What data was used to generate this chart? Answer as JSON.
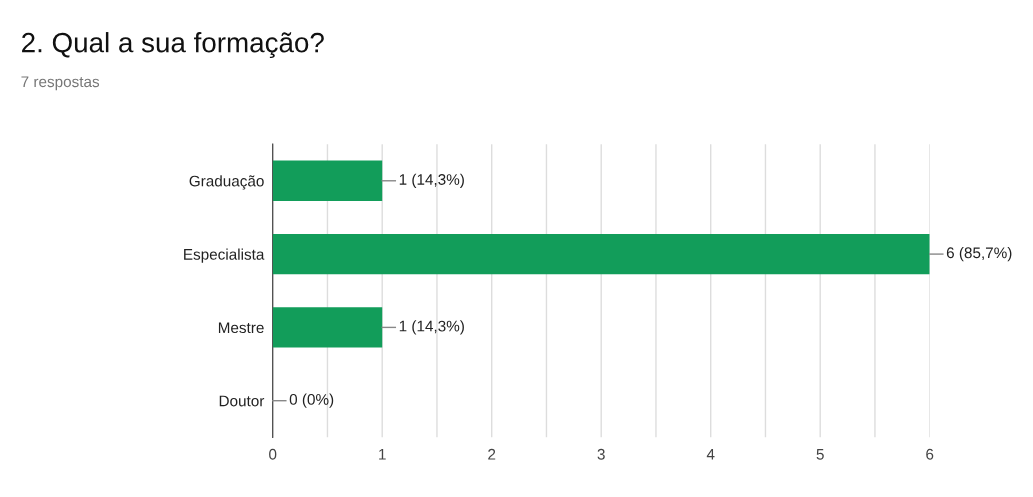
{
  "chart_data": {
    "type": "bar",
    "orientation": "horizontal",
    "title": "2. Qual a sua formação?",
    "subtitle": "7 respostas",
    "categories": [
      "Graduação",
      "Especialista",
      "Mestre",
      "Doutor"
    ],
    "values": [
      1,
      6,
      1,
      0
    ],
    "color": "#129d5a",
    "value_labels": [
      "1 (14,3%)",
      "6 (85,7%)",
      "1 (14,3%)",
      "0 (0%)"
    ],
    "xlim": [
      0,
      6
    ],
    "xticks": [
      0,
      {
        "value": 0.5,
        "label": null
      },
      1,
      {
        "value": 1.5,
        "label": null
      },
      2,
      {
        "value": 2.5,
        "label": null
      },
      3,
      {
        "value": 3.5,
        "label": null
      },
      4,
      {
        "value": 4.5,
        "label": null
      },
      5,
      {
        "value": 5.5,
        "label": null
      },
      6
    ],
    "grid": "x",
    "legend": false
  }
}
